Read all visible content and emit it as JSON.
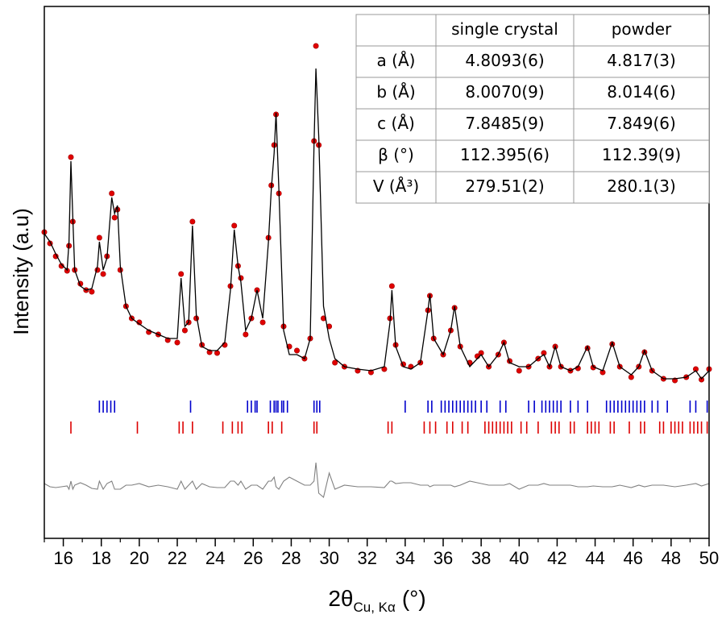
{
  "chart_data": {
    "type": "line",
    "xlabel": {
      "text": "2θ",
      "subscript": "Cu, Kα",
      "suffix": "(°)"
    },
    "ylabel": "Intensity (a.u)",
    "xlim": [
      15,
      50
    ],
    "xticks": [
      16,
      18,
      20,
      22,
      24,
      26,
      28,
      30,
      32,
      34,
      36,
      38,
      40,
      42,
      44,
      46,
      48,
      50
    ],
    "xminor": [
      15,
      17,
      19,
      21,
      23,
      25,
      27,
      29,
      31,
      33,
      35,
      37,
      39,
      41,
      43,
      45,
      47,
      49
    ],
    "ylim": [
      0,
      660
    ],
    "x": [
      15.0,
      15.3,
      15.6,
      15.9,
      16.2,
      16.3,
      16.4,
      16.5,
      16.6,
      16.9,
      17.2,
      17.5,
      17.8,
      17.9,
      18.1,
      18.3,
      18.55,
      18.7,
      18.85,
      19.0,
      19.3,
      19.6,
      20.0,
      20.5,
      21.0,
      21.5,
      22.0,
      22.2,
      22.4,
      22.6,
      22.8,
      23.0,
      23.3,
      23.7,
      24.1,
      24.5,
      24.8,
      25.0,
      25.2,
      25.35,
      25.6,
      25.9,
      26.2,
      26.5,
      26.8,
      26.95,
      27.1,
      27.2,
      27.35,
      27.6,
      27.9,
      28.3,
      28.7,
      29.0,
      29.2,
      29.3,
      29.45,
      29.7,
      30.0,
      30.3,
      30.8,
      31.5,
      32.2,
      32.9,
      33.2,
      33.3,
      33.5,
      33.9,
      34.3,
      34.8,
      35.2,
      35.3,
      35.5,
      36.0,
      36.4,
      36.6,
      36.9,
      37.4,
      37.8,
      38.0,
      38.4,
      38.9,
      39.2,
      39.5,
      40.0,
      40.5,
      41.0,
      41.3,
      41.6,
      41.9,
      42.2,
      42.7,
      43.1,
      43.6,
      43.9,
      44.4,
      44.9,
      45.3,
      45.9,
      46.3,
      46.6,
      47.0,
      47.6,
      48.2,
      48.8,
      49.3,
      49.6,
      50.0
    ],
    "series": [
      {
        "style": "markers",
        "color": "#e00000",
        "values": [
          380,
          366,
          350,
          338,
          332,
          363,
          473,
          393,
          333,
          316,
          308,
          306,
          333,
          373,
          328,
          350,
          428,
          398,
          408,
          333,
          288,
          273,
          268,
          256,
          253,
          246,
          243,
          328,
          258,
          268,
          393,
          273,
          240,
          231,
          230,
          240,
          313,
          388,
          338,
          323,
          253,
          273,
          308,
          268,
          373,
          438,
          488,
          526,
          428,
          263,
          238,
          233,
          223,
          248,
          493,
          611,
          488,
          273,
          263,
          218,
          213,
          208,
          206,
          210,
          273,
          313,
          240,
          216,
          213,
          218,
          283,
          301,
          248,
          228,
          258,
          286,
          238,
          218,
          226,
          230,
          213,
          228,
          243,
          220,
          208,
          213,
          223,
          230,
          213,
          238,
          213,
          208,
          211,
          236,
          212,
          206,
          241,
          213,
          200,
          213,
          231,
          208,
          198,
          196,
          200,
          210,
          197,
          210
        ]
      },
      {
        "style": "line",
        "color": "#000000",
        "values": [
          378,
          368,
          353,
          340,
          333,
          368,
          468,
          398,
          333,
          313,
          308,
          310,
          338,
          368,
          333,
          348,
          423,
          403,
          413,
          338,
          288,
          273,
          266,
          258,
          253,
          248,
          248,
          323,
          263,
          268,
          388,
          278,
          238,
          233,
          233,
          243,
          308,
          383,
          338,
          318,
          258,
          273,
          308,
          273,
          368,
          433,
          478,
          528,
          433,
          258,
          228,
          228,
          223,
          248,
          488,
          583,
          498,
          288,
          248,
          223,
          213,
          210,
          208,
          213,
          268,
          308,
          238,
          213,
          210,
          218,
          283,
          303,
          248,
          228,
          258,
          288,
          238,
          213,
          223,
          228,
          213,
          228,
          243,
          218,
          213,
          213,
          223,
          228,
          213,
          238,
          213,
          208,
          213,
          238,
          213,
          208,
          243,
          213,
          203,
          213,
          233,
          208,
          198,
          198,
          200,
          208,
          198,
          208
        ]
      },
      {
        "style": "line",
        "color": "#808080",
        "values": [
          68,
          64,
          63,
          64,
          65,
          61,
          71,
          61,
          66,
          69,
          66,
          62,
          61,
          71,
          61,
          68,
          71,
          61,
          61,
          61,
          66,
          66,
          68,
          64,
          66,
          64,
          61,
          71,
          61,
          66,
          71,
          61,
          68,
          64,
          63,
          63,
          71,
          71,
          66,
          71,
          61,
          66,
          66,
          61,
          71,
          71,
          76,
          64,
          61,
          71,
          76,
          71,
          66,
          66,
          71,
          94,
          56,
          51,
          81,
          61,
          66,
          64,
          64,
          63,
          71,
          71,
          68,
          69,
          69,
          66,
          66,
          64,
          66,
          66,
          66,
          64,
          66,
          71,
          69,
          68,
          66,
          66,
          66,
          68,
          61,
          66,
          66,
          68,
          66,
          66,
          66,
          66,
          64,
          64,
          65,
          64,
          64,
          66,
          63,
          66,
          64,
          66,
          66,
          64,
          66,
          68,
          65,
          68
        ]
      }
    ],
    "reflections": [
      {
        "color": "#0000cc",
        "positions": [
          17.9,
          18.1,
          18.3,
          18.5,
          18.7,
          22.7,
          25.7,
          25.9,
          26.1,
          26.2,
          26.9,
          27.1,
          27.2,
          27.3,
          27.5,
          27.6,
          27.8,
          29.2,
          29.35,
          29.5,
          34.0,
          35.2,
          35.4,
          35.9,
          36.1,
          36.3,
          36.5,
          36.7,
          36.9,
          37.1,
          37.3,
          37.5,
          37.7,
          38.0,
          38.3,
          39.0,
          39.3,
          40.5,
          40.8,
          41.2,
          41.4,
          41.6,
          41.8,
          42.0,
          42.2,
          42.7,
          43.1,
          43.6,
          44.6,
          44.8,
          45.0,
          45.2,
          45.4,
          45.6,
          45.8,
          46.0,
          46.2,
          46.4,
          46.6,
          47.0,
          47.3,
          47.8,
          49.0,
          49.3,
          49.9
        ]
      },
      {
        "color": "#dd0000",
        "positions": [
          16.4,
          19.9,
          22.1,
          22.3,
          22.8,
          24.4,
          24.9,
          25.2,
          25.4,
          26.8,
          27.0,
          27.5,
          29.2,
          29.35,
          33.1,
          33.3,
          35.0,
          35.3,
          35.6,
          36.2,
          36.5,
          37.0,
          37.3,
          38.2,
          38.4,
          38.6,
          38.8,
          39.0,
          39.2,
          39.4,
          39.6,
          40.1,
          40.4,
          41.0,
          41.7,
          41.9,
          42.1,
          42.7,
          42.9,
          43.6,
          43.8,
          44.0,
          44.2,
          44.8,
          45.0,
          45.8,
          46.4,
          46.6,
          47.4,
          47.6,
          48.0,
          48.2,
          48.4,
          48.6,
          49.0,
          49.2,
          49.4,
          49.6,
          49.9
        ]
      }
    ],
    "inset_table": {
      "header": [
        "single crystal",
        "powder"
      ],
      "rows": [
        [
          "a (Å)",
          "4.8093(6)",
          "4.817(3)"
        ],
        [
          "b (Å)",
          "8.0070(9)",
          "8.014(6)"
        ],
        [
          "c (Å)",
          "7.8485(9)",
          "7.849(6)"
        ],
        [
          "β (°)",
          "112.395(6)",
          "112.39(9)"
        ],
        [
          "V (Å³)",
          "279.51(2)",
          "280.1(3)"
        ]
      ]
    }
  }
}
